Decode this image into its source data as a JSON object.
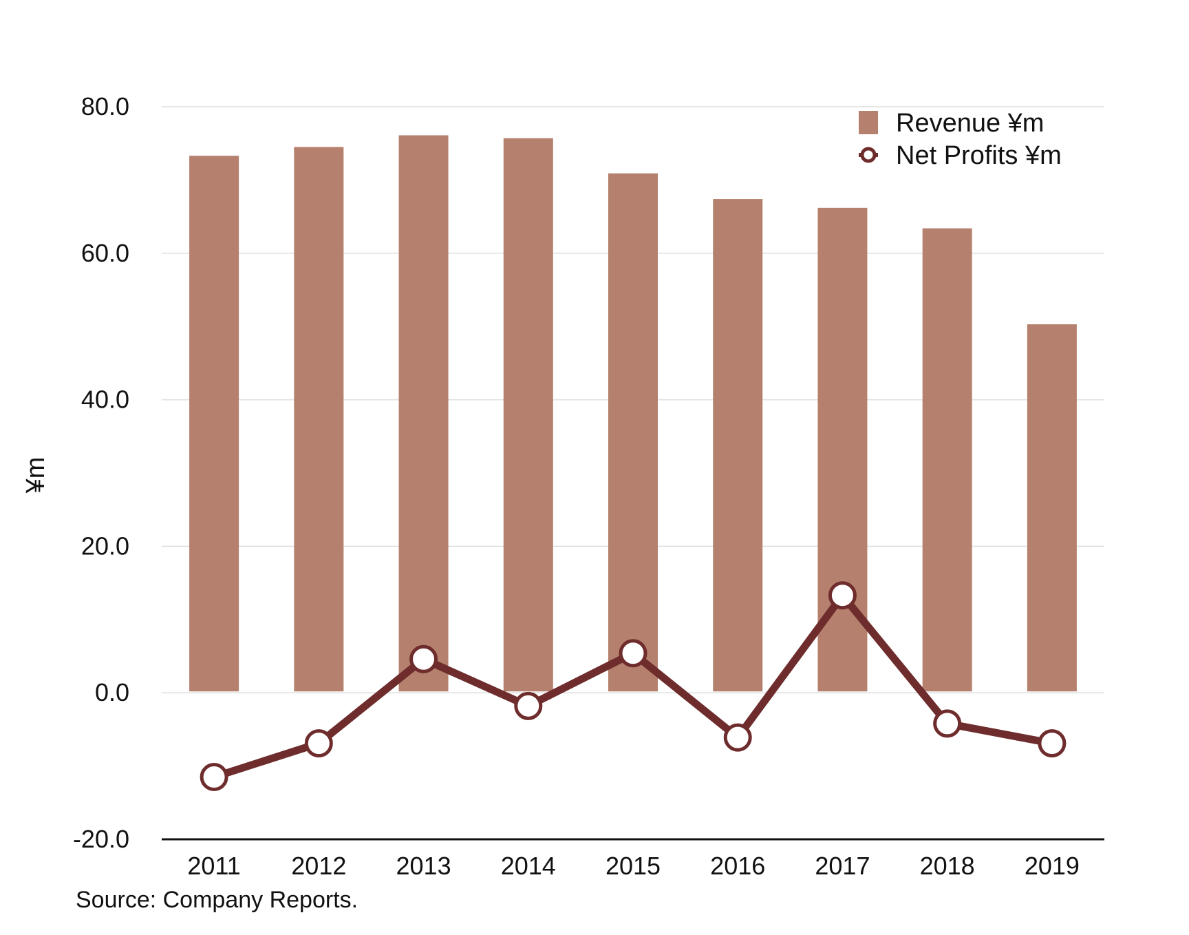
{
  "chart_data": {
    "type": "bar",
    "title": "",
    "xlabel": "",
    "ylabel": "¥m",
    "ylim": [
      -20,
      80
    ],
    "ytick_values": [
      80,
      60,
      40,
      20,
      0,
      -20
    ],
    "ytick_labels": [
      "80.0",
      "60.0",
      "40.0",
      "20.0",
      "0.0",
      "-20.0"
    ],
    "grid": true,
    "legend_position": "top-right",
    "categories": [
      "2011",
      "2012",
      "2013",
      "2014",
      "2015",
      "2016",
      "2017",
      "2018",
      "2019"
    ],
    "series": [
      {
        "name": "Revenue ¥m",
        "type": "bar",
        "color": "#B5806D",
        "values": [
          73.3,
          74.5,
          76.1,
          75.7,
          70.9,
          67.4,
          66.2,
          63.4,
          50.3
        ]
      },
      {
        "name": "Net Profits ¥m",
        "type": "line",
        "color": "#6E2C2C",
        "marker_fill": "#FFFFFF",
        "values": [
          -11.5,
          -6.9,
          4.6,
          -1.8,
          5.4,
          -6.1,
          13.3,
          -4.2,
          -6.9
        ]
      }
    ]
  },
  "source": {
    "text": "Source: Company Reports."
  },
  "colors": {
    "grid": "#DDDDDD",
    "axis": "#111111",
    "text": "#111111"
  }
}
